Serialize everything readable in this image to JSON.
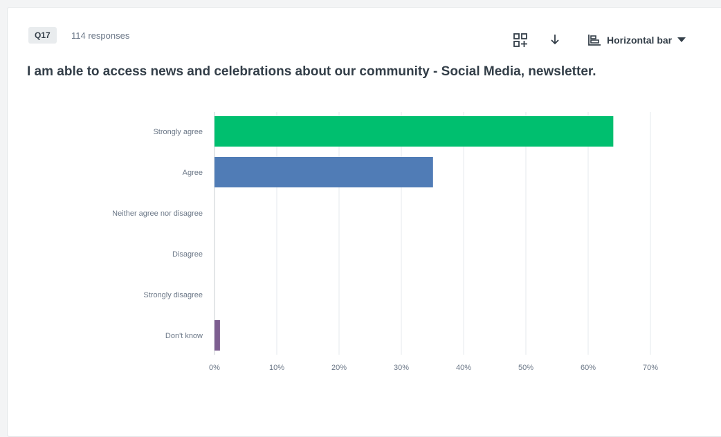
{
  "question": {
    "number": "Q17",
    "responses": "114 responses",
    "title": "I am able to access news and celebrations about our community - Social Media, newsletter."
  },
  "toolbar": {
    "compare_icon": "compare-grid-icon",
    "download_icon": "download-arrow-icon",
    "chart_type_icon": "horizontal-bar-chart-icon",
    "chart_type_label": "Horizontal bar",
    "chart_type_caret": "caret-down-icon"
  },
  "chart_data": {
    "type": "bar",
    "orientation": "horizontal",
    "categories": [
      "Strongly agree",
      "Agree",
      "Neither agree nor disagree",
      "Disagree",
      "Strongly disagree",
      "Don't know"
    ],
    "values": [
      64.04,
      35.09,
      0,
      0,
      0,
      0.88
    ],
    "colors": [
      "#00bf6f",
      "#507cb6",
      "#f9be00",
      "#6bc8cd",
      "#ff8b4f",
      "#7d5e90"
    ],
    "xlim": [
      0,
      70
    ],
    "xticks": [
      "0%",
      "10%",
      "20%",
      "30%",
      "40%",
      "50%",
      "60%",
      "70%"
    ],
    "grid": true
  }
}
